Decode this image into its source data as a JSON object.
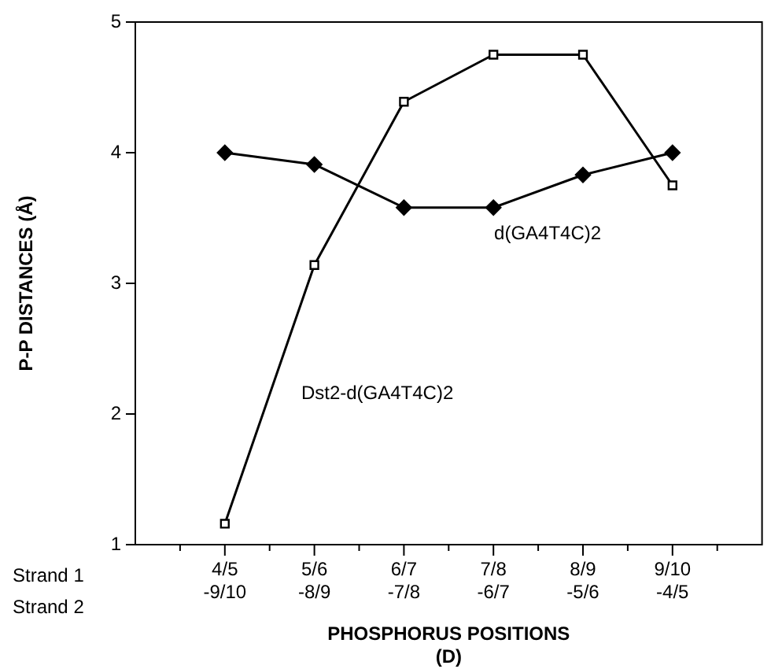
{
  "chart_data": {
    "type": "line",
    "xlabel": "PHOSPHORUS POSITIONS\n(D)",
    "ylabel": "P-P DISTANCES (Å)",
    "categories": [
      "4/5\n-9/10",
      "5/6\n-8/9",
      "6/7\n-7/8",
      "7/8\n-6/7",
      "8/9\n-5/6",
      "9/10\n-4/5"
    ],
    "series": [
      {
        "name": "d(GA4T4C)2",
        "color": "#000000",
        "marker": "diamond",
        "values": [
          4.0,
          3.91,
          3.58,
          3.58,
          3.83,
          4.0
        ]
      },
      {
        "name": "Dst2-d(GA4T4C)2",
        "color": "#000000",
        "marker": "square",
        "values": [
          1.16,
          3.14,
          4.39,
          4.75,
          4.75,
          3.75
        ]
      }
    ],
    "ylim": [
      1,
      5
    ],
    "yticks": [
      1,
      2,
      3,
      4,
      5
    ],
    "annotations": [
      "Strand 1",
      "Strand 2"
    ],
    "grid": false,
    "legend": false
  }
}
